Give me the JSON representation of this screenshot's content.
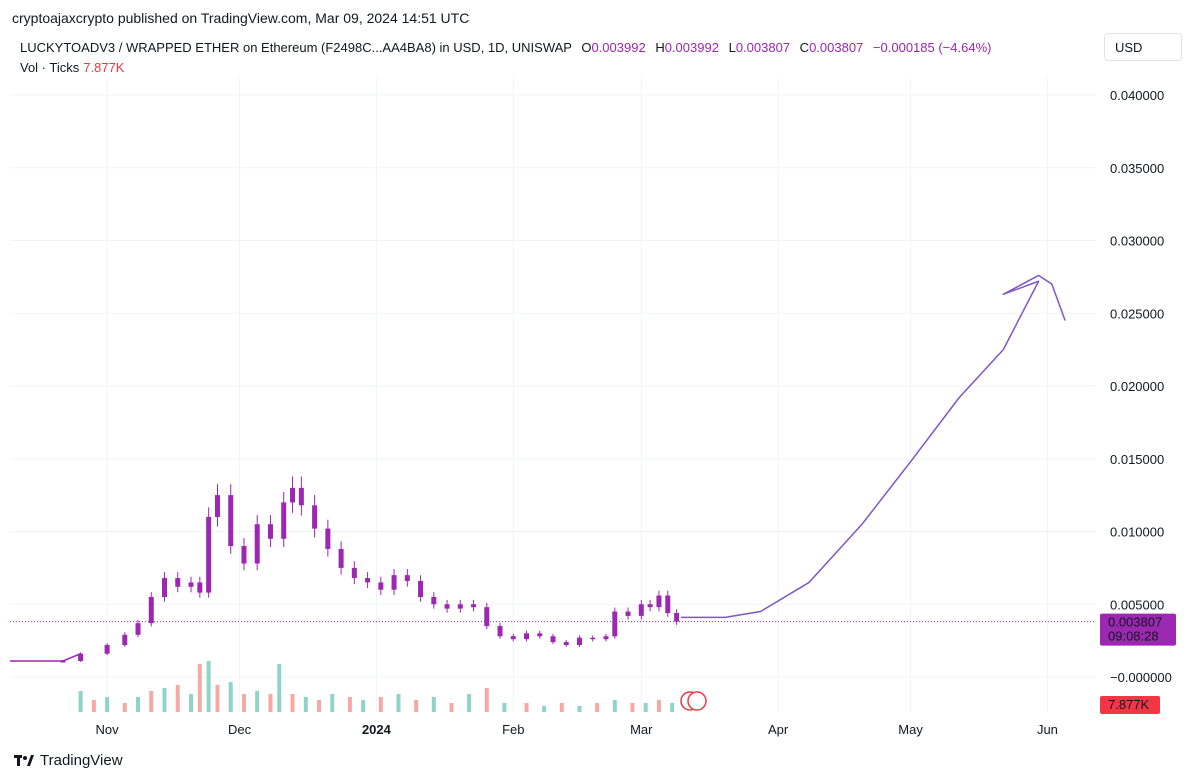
{
  "header": {
    "published_line": "cryptoajaxcrypto published on TradingView.com, Mar 09, 2024 14:51 UTC"
  },
  "legend": {
    "symbol": "LUCKYTOADV3 / WRAPPED ETHER on Ethereum (F2498C...AA4BA8) in USD, 1D, UNISWAP",
    "open_label": "O",
    "open": "0.003992",
    "high_label": "H",
    "high": "0.003992",
    "low_label": "L",
    "low": "0.003807",
    "close_label": "C",
    "close": "0.003807",
    "change": "−0.000185 (−4.64%)",
    "vol_label": "Vol · Ticks",
    "vol_value": "7.877K"
  },
  "currency_button": "USD",
  "footer": {
    "brand": "TradingView"
  },
  "colors": {
    "candle": "#9c27b0",
    "vol_up": "#8fd3ca",
    "vol_down": "#f6a9a4",
    "price_tag": "#9c27b0",
    "vol_tag": "#f23645"
  },
  "chart_data": {
    "type": "candlestick",
    "ylim": [
      -0.002,
      0.0415
    ],
    "y_ticks": [
      0.04,
      0.035,
      0.03,
      0.025,
      0.02,
      0.015,
      0.01,
      0.005,
      0.0
    ],
    "y_tick_labels": [
      "0.040000",
      "0.035000",
      "0.030000",
      "0.025000",
      "0.020000",
      "0.015000",
      "0.010000",
      "0.005000",
      "−0.000000"
    ],
    "x_start": "2023-10-10",
    "x_end": "2024-06-12",
    "x_ticks": [
      {
        "date": "2023-11-01",
        "label": "Nov",
        "bold": false
      },
      {
        "date": "2023-12-01",
        "label": "Dec",
        "bold": false
      },
      {
        "date": "2024-01-01",
        "label": "2024",
        "bold": true
      },
      {
        "date": "2024-02-01",
        "label": "Feb",
        "bold": false
      },
      {
        "date": "2024-03-01",
        "label": "Mar",
        "bold": false
      },
      {
        "date": "2024-04-01",
        "label": "Apr",
        "bold": false
      },
      {
        "date": "2024-05-01",
        "label": "May",
        "bold": false
      },
      {
        "date": "2024-06-01",
        "label": "Jun",
        "bold": false
      }
    ],
    "close_series": [
      {
        "x": "2023-10-10",
        "y": 0.0011
      },
      {
        "x": "2023-10-22",
        "y": 0.0011
      },
      {
        "x": "2023-10-26",
        "y": 0.0016
      },
      {
        "x": "2023-11-01",
        "y": 0.0022
      },
      {
        "x": "2023-11-05",
        "y": 0.0029
      },
      {
        "x": "2023-11-08",
        "y": 0.0037
      },
      {
        "x": "2023-11-11",
        "y": 0.0055
      },
      {
        "x": "2023-11-14",
        "y": 0.0068
      },
      {
        "x": "2023-11-17",
        "y": 0.0062
      },
      {
        "x": "2023-11-20",
        "y": 0.0065
      },
      {
        "x": "2023-11-22",
        "y": 0.0058
      },
      {
        "x": "2023-11-24",
        "y": 0.011
      },
      {
        "x": "2023-11-26",
        "y": 0.0125
      },
      {
        "x": "2023-11-29",
        "y": 0.009
      },
      {
        "x": "2023-12-02",
        "y": 0.0078
      },
      {
        "x": "2023-12-05",
        "y": 0.0105
      },
      {
        "x": "2023-12-08",
        "y": 0.0095
      },
      {
        "x": "2023-12-11",
        "y": 0.012
      },
      {
        "x": "2023-12-13",
        "y": 0.013
      },
      {
        "x": "2023-12-15",
        "y": 0.0118
      },
      {
        "x": "2023-12-18",
        "y": 0.0102
      },
      {
        "x": "2023-12-21",
        "y": 0.0088
      },
      {
        "x": "2023-12-24",
        "y": 0.0075
      },
      {
        "x": "2023-12-27",
        "y": 0.0068
      },
      {
        "x": "2023-12-30",
        "y": 0.0065
      },
      {
        "x": "2024-01-02",
        "y": 0.006
      },
      {
        "x": "2024-01-05",
        "y": 0.007
      },
      {
        "x": "2024-01-08",
        "y": 0.0066
      },
      {
        "x": "2024-01-11",
        "y": 0.0055
      },
      {
        "x": "2024-01-14",
        "y": 0.005
      },
      {
        "x": "2024-01-17",
        "y": 0.0047
      },
      {
        "x": "2024-01-20",
        "y": 0.005
      },
      {
        "x": "2024-01-23",
        "y": 0.0048
      },
      {
        "x": "2024-01-26",
        "y": 0.0035
      },
      {
        "x": "2024-01-29",
        "y": 0.0028
      },
      {
        "x": "2024-02-01",
        "y": 0.0026
      },
      {
        "x": "2024-02-04",
        "y": 0.003
      },
      {
        "x": "2024-02-07",
        "y": 0.0028
      },
      {
        "x": "2024-02-10",
        "y": 0.0024
      },
      {
        "x": "2024-02-13",
        "y": 0.0022
      },
      {
        "x": "2024-02-16",
        "y": 0.0027
      },
      {
        "x": "2024-02-19",
        "y": 0.0026
      },
      {
        "x": "2024-02-22",
        "y": 0.0028
      },
      {
        "x": "2024-02-24",
        "y": 0.0045
      },
      {
        "x": "2024-02-27",
        "y": 0.0042
      },
      {
        "x": "2024-03-01",
        "y": 0.005
      },
      {
        "x": "2024-03-03",
        "y": 0.0048
      },
      {
        "x": "2024-03-05",
        "y": 0.0056
      },
      {
        "x": "2024-03-07",
        "y": 0.0044
      },
      {
        "x": "2024-03-09",
        "y": 0.003807
      }
    ],
    "volume_series": [
      {
        "x": "2023-10-26",
        "v": 3.5
      },
      {
        "x": "2023-10-29",
        "v": 2.0
      },
      {
        "x": "2023-11-01",
        "v": 2.5
      },
      {
        "x": "2023-11-05",
        "v": 1.5
      },
      {
        "x": "2023-11-08",
        "v": 2.5
      },
      {
        "x": "2023-11-11",
        "v": 3.5
      },
      {
        "x": "2023-11-14",
        "v": 4.0
      },
      {
        "x": "2023-11-17",
        "v": 4.5
      },
      {
        "x": "2023-11-20",
        "v": 3.0
      },
      {
        "x": "2023-11-22",
        "v": 8.0
      },
      {
        "x": "2023-11-24",
        "v": 8.5
      },
      {
        "x": "2023-11-26",
        "v": 4.5
      },
      {
        "x": "2023-11-29",
        "v": 5.0
      },
      {
        "x": "2023-12-02",
        "v": 3.0
      },
      {
        "x": "2023-12-05",
        "v": 3.5
      },
      {
        "x": "2023-12-08",
        "v": 3.0
      },
      {
        "x": "2023-12-10",
        "v": 8.0
      },
      {
        "x": "2023-12-13",
        "v": 3.0
      },
      {
        "x": "2023-12-16",
        "v": 2.5
      },
      {
        "x": "2023-12-19",
        "v": 2.0
      },
      {
        "x": "2023-12-22",
        "v": 3.0
      },
      {
        "x": "2023-12-26",
        "v": 2.5
      },
      {
        "x": "2023-12-29",
        "v": 2.0
      },
      {
        "x": "2024-01-02",
        "v": 2.5
      },
      {
        "x": "2024-01-06",
        "v": 3.0
      },
      {
        "x": "2024-01-10",
        "v": 2.0
      },
      {
        "x": "2024-01-14",
        "v": 2.5
      },
      {
        "x": "2024-01-18",
        "v": 1.5
      },
      {
        "x": "2024-01-22",
        "v": 3.0
      },
      {
        "x": "2024-01-26",
        "v": 4.0
      },
      {
        "x": "2024-01-30",
        "v": 1.5
      },
      {
        "x": "2024-02-04",
        "v": 1.5
      },
      {
        "x": "2024-02-08",
        "v": 1.0
      },
      {
        "x": "2024-02-12",
        "v": 1.5
      },
      {
        "x": "2024-02-16",
        "v": 1.0
      },
      {
        "x": "2024-02-20",
        "v": 1.5
      },
      {
        "x": "2024-02-24",
        "v": 2.0
      },
      {
        "x": "2024-02-28",
        "v": 1.5
      },
      {
        "x": "2024-03-02",
        "v": 1.5
      },
      {
        "x": "2024-03-05",
        "v": 2.0
      },
      {
        "x": "2024-03-08",
        "v": 1.5
      }
    ],
    "last_price_tag": "0.003807",
    "countdown_tag": "09:08:28",
    "volume_tag": "7.877K",
    "forecast_drawing": [
      {
        "x": "2024-03-10",
        "y": 0.0041
      },
      {
        "x": "2024-03-20",
        "y": 0.0041
      },
      {
        "x": "2024-03-28",
        "y": 0.0045
      },
      {
        "x": "2024-04-08",
        "y": 0.0065
      },
      {
        "x": "2024-04-20",
        "y": 0.0105
      },
      {
        "x": "2024-05-01",
        "y": 0.0148
      },
      {
        "x": "2024-05-12",
        "y": 0.0192
      },
      {
        "x": "2024-05-22",
        "y": 0.0225
      },
      {
        "x": "2024-05-30",
        "y": 0.0272
      },
      {
        "x": "2024-05-22",
        "y": 0.0263
      },
      {
        "x": "2024-05-30",
        "y": 0.0276
      },
      {
        "x": "2024-06-02",
        "y": 0.027
      },
      {
        "x": "2024-06-05",
        "y": 0.0245
      }
    ]
  }
}
